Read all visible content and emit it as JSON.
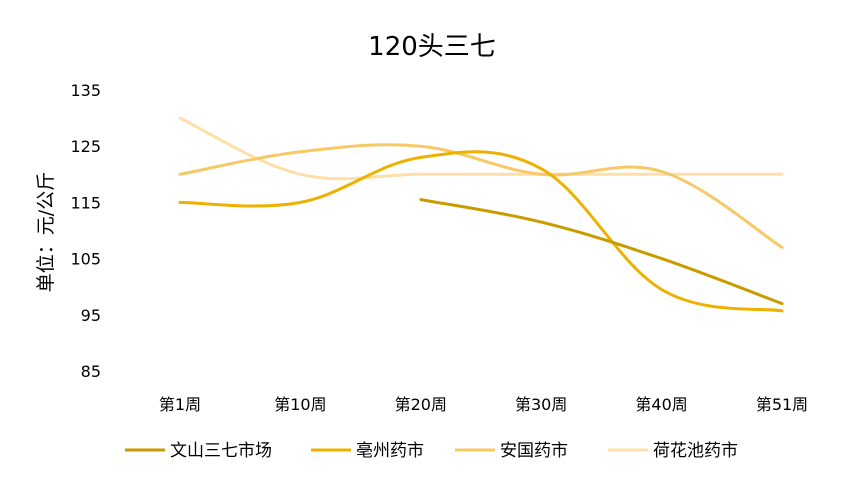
{
  "chart_data": {
    "type": "line",
    "title": "120头三七",
    "ylabel": "单位：元/公斤",
    "xlabel": "",
    "categories": [
      "第1周",
      "第10周",
      "第20周",
      "第30周",
      "第40周",
      "第51周"
    ],
    "yticks": [
      135,
      125,
      115,
      105,
      95,
      85
    ],
    "ylim": [
      85,
      135
    ],
    "grid": false,
    "legend_position": "bottom",
    "smooth": true,
    "series": [
      {
        "name": "文山三七市场",
        "color": "#C89B00",
        "values": [
          null,
          null,
          115.5,
          111.5,
          105,
          97
        ]
      },
      {
        "name": "亳州药市",
        "color": "#EDB100",
        "values": [
          115,
          115,
          123,
          121,
          99.5,
          95.7
        ]
      },
      {
        "name": "安国药市",
        "color": "#F7C866",
        "values": [
          120,
          124,
          125,
          120,
          120.5,
          107
        ]
      },
      {
        "name": "荷花池药市",
        "color": "#FDDFA7",
        "values": [
          130,
          120,
          120,
          120,
          120,
          120
        ]
      }
    ]
  }
}
